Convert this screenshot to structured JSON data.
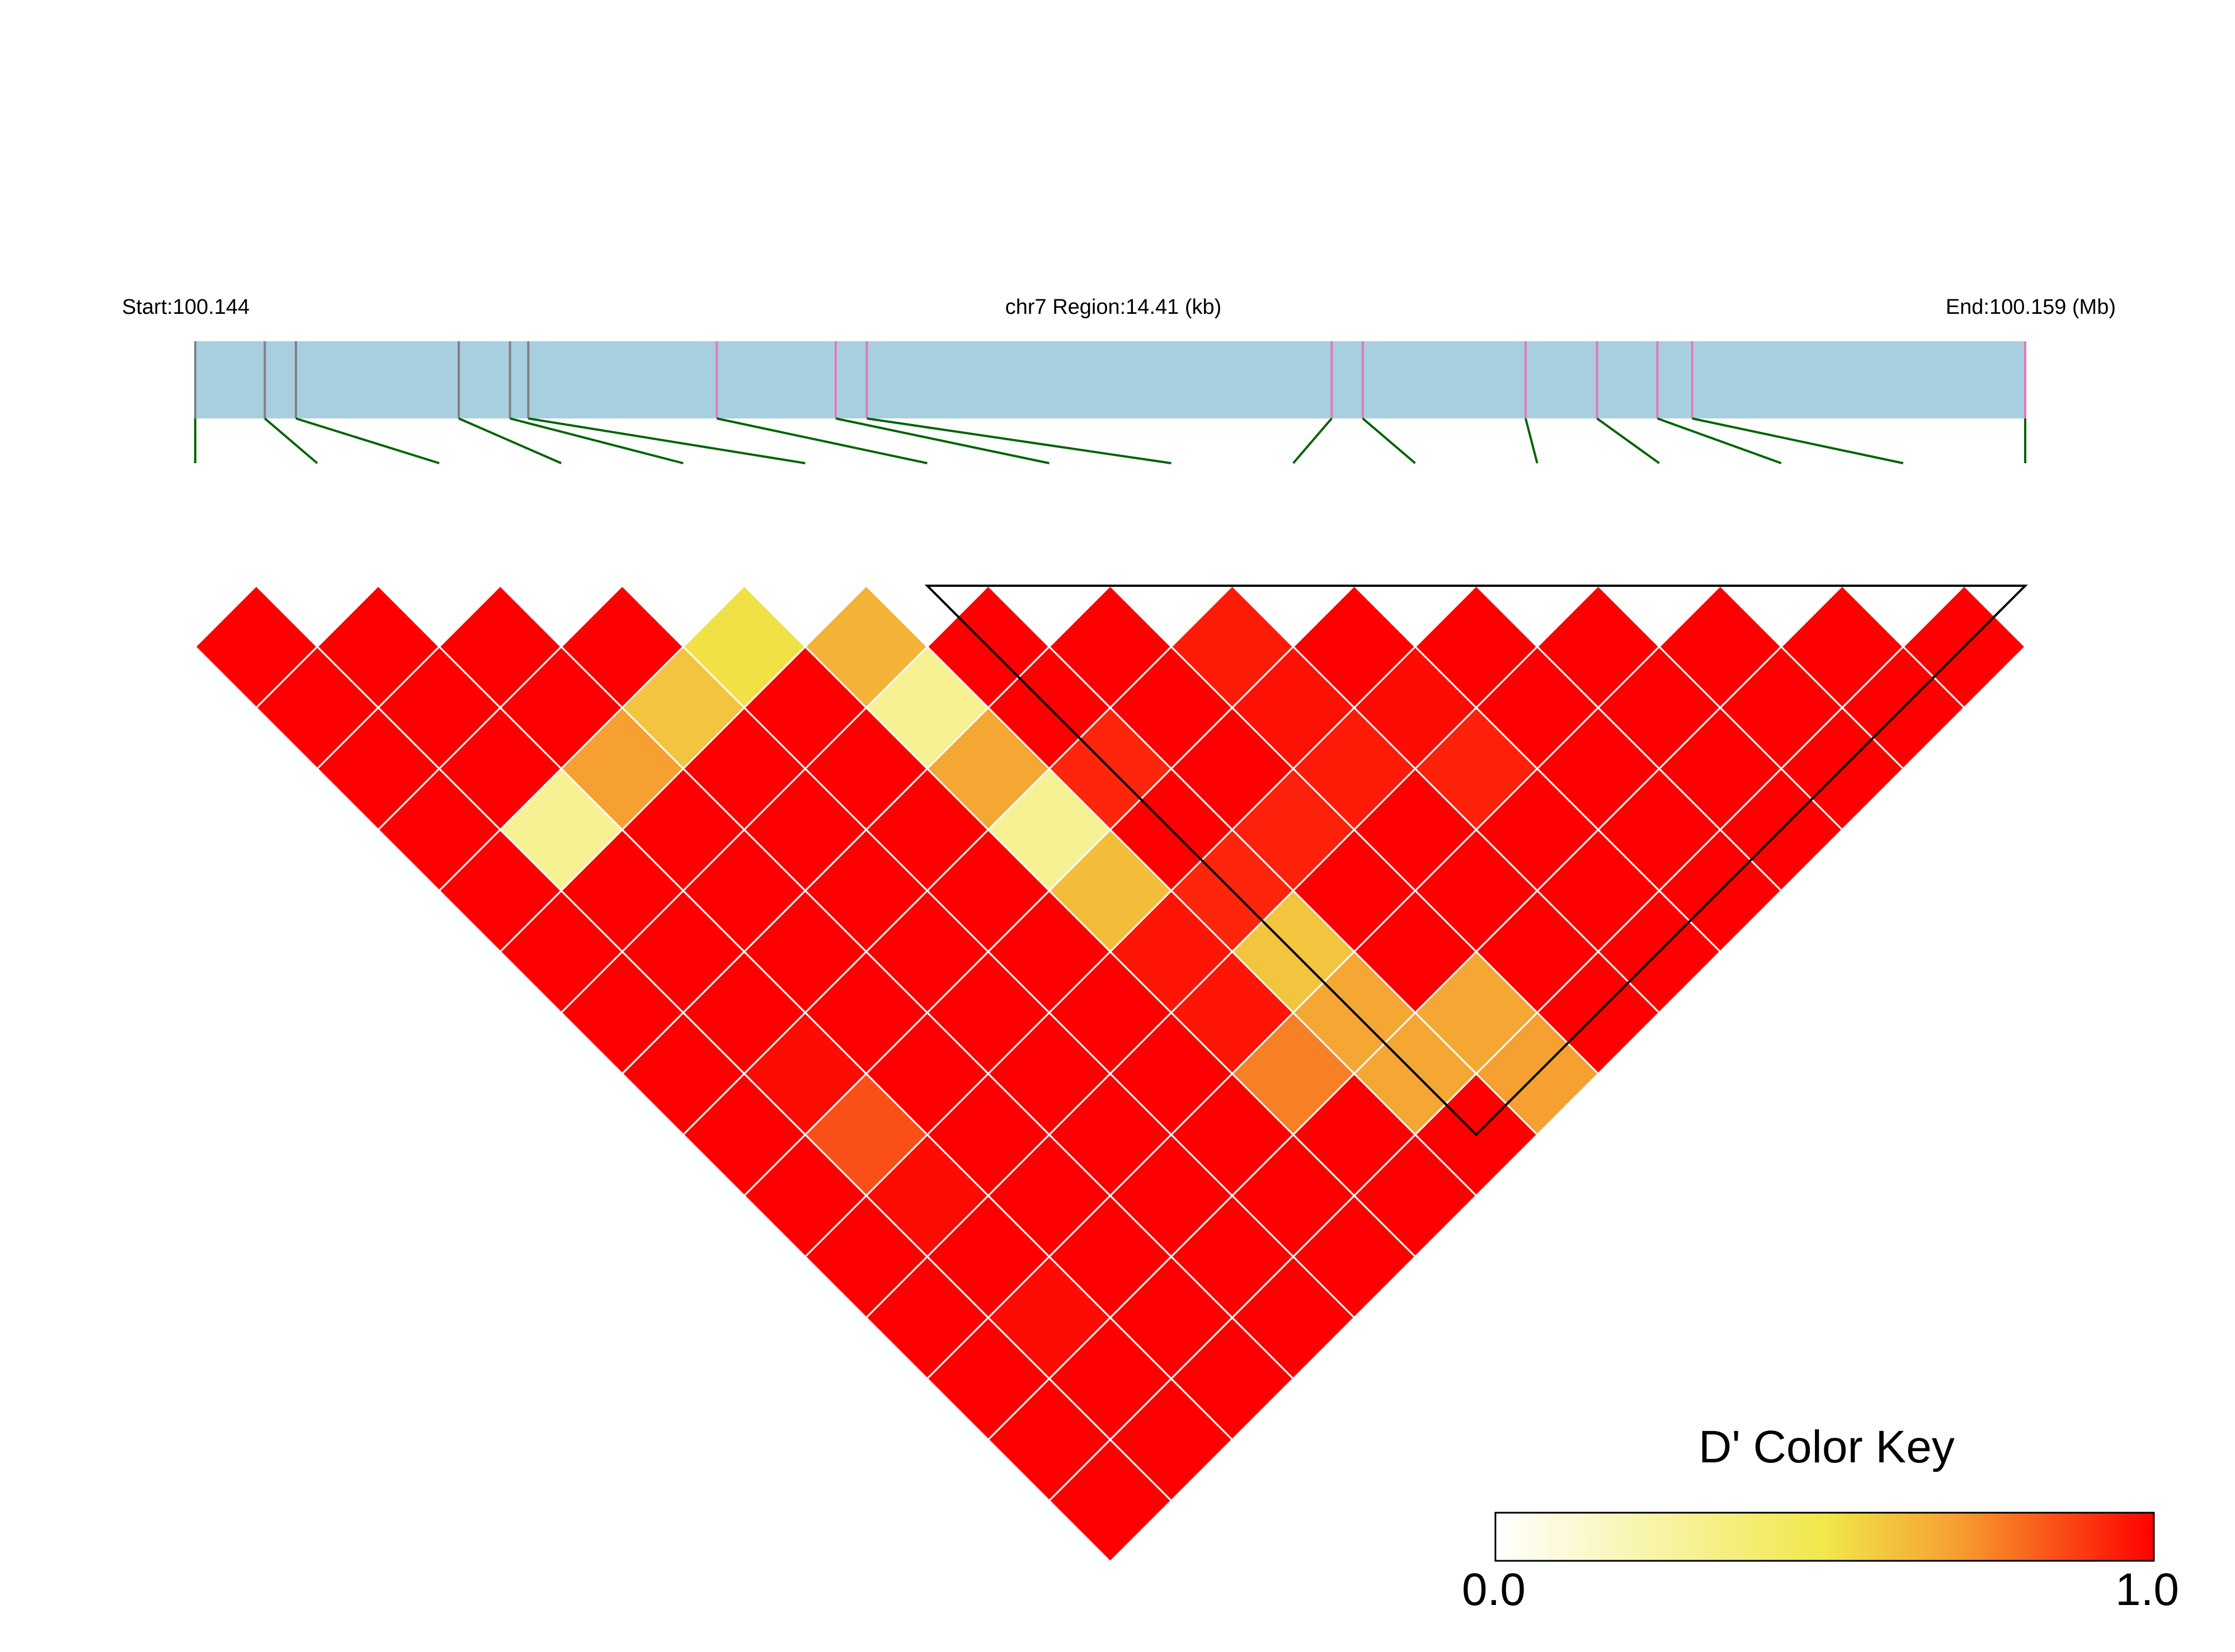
{
  "header": {
    "start_label": "Start:100.144",
    "region_label": "chr7 Region:14.41 (kb)",
    "end_label": "End:100.159 (Mb)"
  },
  "color_key": {
    "title": "D' Color Key",
    "min_label": "0.0",
    "max_label": "1.0",
    "stops": [
      "#ffffff",
      "#f0e84a",
      "#f5a030",
      "#ff0000"
    ]
  },
  "colors": {
    "track_fill": "#a8cfe0",
    "snp_line_grey": "#808080",
    "snp_line_pink": "#e07ab5",
    "connector_green": "#006400",
    "cell_border": "#ffffff",
    "block_outline": "#000000"
  },
  "chart_data": {
    "type": "heatmap",
    "description_type": "linkage-disequilibrium-triangle",
    "chromosome": "chr7",
    "region_start_mb": 100.144,
    "region_end_mb": 100.159,
    "region_length_kb": 14.41,
    "snp_count": 16,
    "snp_positions_fraction": [
      0.0,
      0.038,
      0.055,
      0.144,
      0.172,
      0.182,
      0.285,
      0.35,
      0.367,
      0.621,
      0.638,
      0.727,
      0.766,
      0.799,
      0.818,
      1.0
    ],
    "snp_line_colors": [
      "grey",
      "grey",
      "grey",
      "grey",
      "grey",
      "grey",
      "pink",
      "pink",
      "pink",
      "pink",
      "pink",
      "pink",
      "pink",
      "pink",
      "pink",
      "pink"
    ],
    "ld_block": {
      "first_snp": 7,
      "last_snp": 16
    },
    "d_prime_matrix_by_distance": [
      [
        1.0,
        1.0,
        1.0,
        1.0,
        0.52,
        0.65,
        1.0,
        1.0,
        0.95,
        1.0,
        1.0,
        1.0,
        1.0,
        1.0,
        1.0
      ],
      [
        1.0,
        1.0,
        1.0,
        0.6,
        1.0,
        0.3,
        1.0,
        1.0,
        0.97,
        0.98,
        1.0,
        1.0,
        1.0,
        1.0
      ],
      [
        1.0,
        1.0,
        0.7,
        1.0,
        1.0,
        0.68,
        0.93,
        1.0,
        0.95,
        0.94,
        1.0,
        1.0,
        1.0
      ],
      [
        1.0,
        0.3,
        1.0,
        1.0,
        1.0,
        0.3,
        1.0,
        0.94,
        1.0,
        1.0,
        1.0,
        1.0
      ],
      [
        1.0,
        1.0,
        1.0,
        1.0,
        1.0,
        0.62,
        0.93,
        1.0,
        1.0,
        1.0,
        1.0
      ],
      [
        1.0,
        1.0,
        1.0,
        1.0,
        1.0,
        0.96,
        0.6,
        1.0,
        1.0,
        1.0
      ],
      [
        1.0,
        1.0,
        1.0,
        1.0,
        1.0,
        0.96,
        0.68,
        0.68,
        1.0
      ],
      [
        1.0,
        0.98,
        1.0,
        1.0,
        1.0,
        0.76,
        0.68,
        0.7
      ],
      [
        1.0,
        0.85,
        1.0,
        1.0,
        1.0,
        1.0,
        1.0
      ],
      [
        1.0,
        0.98,
        1.0,
        1.0,
        1.0,
        1.0
      ],
      [
        1.0,
        1.0,
        1.0,
        1.0,
        1.0
      ],
      [
        1.0,
        0.98,
        1.0,
        1.0
      ],
      [
        1.0,
        1.0,
        1.0
      ],
      [
        1.0,
        1.0
      ],
      [
        1.0
      ]
    ],
    "xlabel": "",
    "ylabel": "",
    "value_range": [
      0.0,
      1.0
    ]
  }
}
